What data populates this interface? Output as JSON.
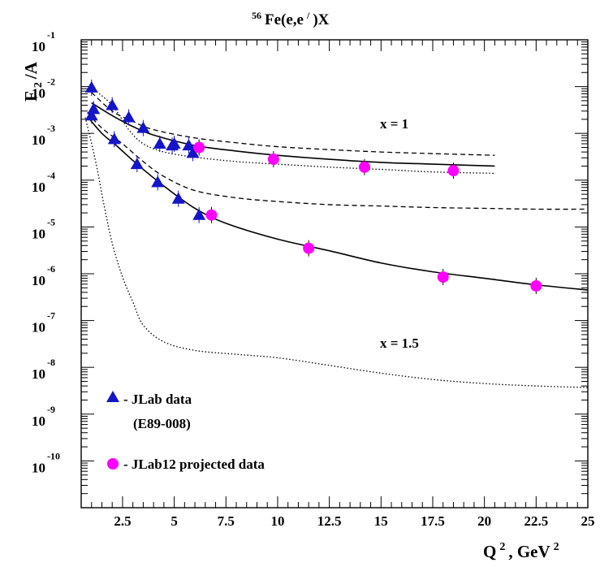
{
  "title": {
    "sup": "56",
    "text": "Fe(e,e",
    "prime": "/",
    "suffix": ")X"
  },
  "ylabel": {
    "main": "F",
    "sub": "2",
    "rest": " /A"
  },
  "xlabel": {
    "main": "Q",
    "sup1": "2",
    "mid": ", GeV",
    "sup2": "2"
  },
  "legend": {
    "jlab_label": "- JLab data",
    "jlab_sub": "(E89-008)",
    "jlab12_label": "- JLab12 projected data"
  },
  "annotations": {
    "x1": "x = 1",
    "x15": "x = 1.5"
  },
  "colors": {
    "jlab": "#1515c8",
    "jlab12": "#ff00ff",
    "curve": "#000000"
  },
  "chart_data": {
    "type": "scatter",
    "xlim": [
      0.5,
      25
    ],
    "ylim_log10": [
      -11,
      -1
    ],
    "yscale": "log",
    "x_ticks": [
      {
        "value": 2.5,
        "label": "2.5"
      },
      {
        "value": 5,
        "label": "5"
      },
      {
        "value": 7.5,
        "label": "7.5"
      },
      {
        "value": 10,
        "label": "10"
      },
      {
        "value": 12.5,
        "label": "12.5"
      },
      {
        "value": 15,
        "label": "15"
      },
      {
        "value": 17.5,
        "label": "17.5"
      },
      {
        "value": 20,
        "label": "20"
      },
      {
        "value": 22.5,
        "label": "22.5"
      },
      {
        "value": 25,
        "label": "25"
      }
    ],
    "y_ticks": [
      {
        "exp": -1,
        "base": "10",
        "label": "-1"
      },
      {
        "exp": -2,
        "base": "10",
        "label": "-2"
      },
      {
        "exp": -3,
        "base": "10",
        "label": "-3"
      },
      {
        "exp": -4,
        "base": "10",
        "label": "-4"
      },
      {
        "exp": -5,
        "base": "10",
        "label": "-5"
      },
      {
        "exp": -6,
        "base": "10",
        "label": "-6"
      },
      {
        "exp": -7,
        "base": "10",
        "label": "-7"
      },
      {
        "exp": -8,
        "base": "10",
        "label": "-8"
      },
      {
        "exp": -9,
        "base": "10",
        "label": "-9"
      },
      {
        "exp": -10,
        "base": "10",
        "label": "-10"
      }
    ],
    "series": [
      {
        "marker": "triangle",
        "color": "#1515c8",
        "points": [
          [
            1.0,
            0.0095
          ],
          [
            1.1,
            0.0033
          ],
          [
            1.0,
            0.0024
          ],
          [
            2.0,
            0.004
          ],
          [
            2.1,
            0.00075
          ],
          [
            2.8,
            0.0022
          ],
          [
            3.5,
            0.0013
          ],
          [
            4.3,
            0.0006
          ],
          [
            4.9,
            0.00055
          ],
          [
            5.0,
            0.0006
          ],
          [
            5.7,
            0.00055
          ],
          [
            5.9,
            0.00038
          ],
          [
            3.2,
            0.00022
          ],
          [
            4.2,
            9e-05
          ],
          [
            5.2,
            4e-05
          ],
          [
            6.2,
            1.8e-05
          ]
        ]
      },
      {
        "marker": "circle",
        "color": "#ff00ff",
        "points": [
          [
            6.2,
            0.0005
          ],
          [
            9.8,
            0.00028
          ],
          [
            14.2,
            0.00019
          ],
          [
            18.5,
            0.00016
          ],
          [
            6.8,
            1.8e-05
          ],
          [
            11.5,
            3.5e-06
          ],
          [
            18.0,
            8.5e-07
          ],
          [
            22.5,
            5.5e-07
          ]
        ]
      }
    ],
    "curves": [
      {
        "style": "solid",
        "points": [
          [
            1.0,
            0.0045
          ],
          [
            2.0,
            0.0024
          ],
          [
            3.0,
            0.0014
          ],
          [
            4.0,
            0.00092
          ],
          [
            6.0,
            0.00055
          ],
          [
            8.0,
            0.00042
          ],
          [
            10.0,
            0.00034
          ],
          [
            12.5,
            0.00028
          ],
          [
            15.0,
            0.00024
          ],
          [
            17.5,
            0.00022
          ],
          [
            20.5,
            0.0002
          ]
        ]
      },
      {
        "style": "dashed",
        "points": [
          [
            1.0,
            0.0075
          ],
          [
            2.0,
            0.003
          ],
          [
            3.0,
            0.0018
          ],
          [
            4.0,
            0.0012
          ],
          [
            6.0,
            0.0008
          ],
          [
            8.0,
            0.00063
          ],
          [
            10.0,
            0.00052
          ],
          [
            12.5,
            0.00045
          ],
          [
            15.0,
            0.0004
          ],
          [
            17.5,
            0.00037
          ],
          [
            20.5,
            0.00034
          ]
        ]
      },
      {
        "style": "dotted",
        "points": [
          [
            1.0,
            0.0095
          ],
          [
            2.0,
            0.004
          ],
          [
            2.8,
            0.0012
          ],
          [
            3.5,
            0.0006
          ],
          [
            4.5,
            0.0004
          ],
          [
            6.0,
            0.00031
          ],
          [
            8.0,
            0.00025
          ],
          [
            10.0,
            0.00022
          ],
          [
            12.5,
            0.00019
          ],
          [
            15.0,
            0.00017
          ],
          [
            17.5,
            0.00015
          ],
          [
            20.5,
            0.00014
          ]
        ]
      },
      {
        "style": "solid",
        "points": [
          [
            0.8,
            0.0023
          ],
          [
            1.5,
            0.001
          ],
          [
            2.2,
            0.00055
          ],
          [
            3.2,
            0.00022
          ],
          [
            4.5,
            7.5e-05
          ],
          [
            6.0,
            2.5e-05
          ],
          [
            7.5,
            1.2e-05
          ],
          [
            10.0,
            5.5e-06
          ],
          [
            12.5,
            3.1e-06
          ],
          [
            15.0,
            1.7e-06
          ],
          [
            17.5,
            1.1e-06
          ],
          [
            20.0,
            8e-07
          ],
          [
            22.5,
            5.8e-07
          ],
          [
            25.0,
            4.5e-07
          ]
        ]
      },
      {
        "style": "dashed",
        "points": [
          [
            0.8,
            0.0028
          ],
          [
            1.5,
            0.0013
          ],
          [
            2.5,
            0.0006
          ],
          [
            3.5,
            0.00025
          ],
          [
            4.5,
            0.00012
          ],
          [
            6.0,
            6e-05
          ],
          [
            8.0,
            4.2e-05
          ],
          [
            10.0,
            3.5e-05
          ],
          [
            12.5,
            3e-05
          ],
          [
            15.0,
            2.8e-05
          ],
          [
            17.5,
            2.6e-05
          ],
          [
            20.0,
            2.5e-05
          ],
          [
            22.5,
            2.4e-05
          ],
          [
            25.0,
            2.4e-05
          ]
        ]
      },
      {
        "style": "dotted",
        "points": [
          [
            0.7,
            0.0022
          ],
          [
            1.2,
            0.00025
          ],
          [
            1.6,
            3e-05
          ],
          [
            2.0,
            4.5e-06
          ],
          [
            2.5,
            8.5e-07
          ],
          [
            3.0,
            2.5e-07
          ],
          [
            3.5,
            8e-08
          ],
          [
            4.5,
            3.5e-08
          ],
          [
            6.0,
            2.3e-08
          ],
          [
            8.0,
            1.9e-08
          ],
          [
            10.0,
            1.6e-08
          ],
          [
            12.5,
            1.1e-08
          ],
          [
            15.0,
            7.5e-09
          ],
          [
            17.5,
            5.5e-09
          ],
          [
            20.0,
            4.5e-09
          ],
          [
            22.5,
            4e-09
          ],
          [
            25.0,
            3.7e-09
          ]
        ]
      }
    ]
  }
}
